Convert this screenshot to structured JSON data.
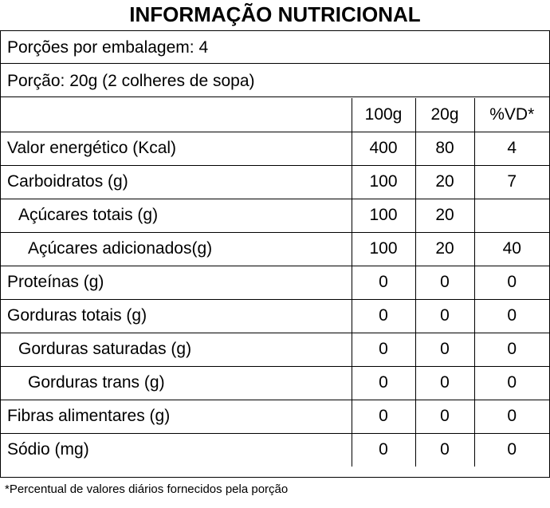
{
  "title": "INFORMAÇÃO NUTRICIONAL",
  "servings_per_package": "Porções por embalagem: 4",
  "serving_size": "Porção: 20g (2 colheres de sopa)",
  "columns": [
    "",
    "100g",
    "20g",
    "%VD*"
  ],
  "rows": [
    {
      "label": "Valor energético (Kcal)",
      "per_100g": "400",
      "per_20g": "80",
      "vd": "4"
    },
    {
      "label": "Carboidratos (g)",
      "per_100g": "100",
      "per_20g": "20",
      "vd": "7"
    },
    {
      "label": "Açúcares totais (g)",
      "per_100g": "100",
      "per_20g": "20",
      "vd": ""
    },
    {
      "label": "Açúcares adicionados(g)",
      "per_100g": "100",
      "per_20g": "20",
      "vd": "40"
    },
    {
      "label": "Proteínas (g)",
      "per_100g": "0",
      "per_20g": "0",
      "vd": "0"
    },
    {
      "label": "Gorduras totais (g)",
      "per_100g": "0",
      "per_20g": "0",
      "vd": "0"
    },
    {
      "label": "Gorduras saturadas (g)",
      "per_100g": "0",
      "per_20g": "0",
      "vd": "0"
    },
    {
      "label": "Gorduras trans (g)",
      "per_100g": "0",
      "per_20g": "0",
      "vd": "0"
    },
    {
      "label": "Fibras alimentares (g)",
      "per_100g": "0",
      "per_20g": "0",
      "vd": "0"
    },
    {
      "label": "Sódio (mg)",
      "per_100g": "0",
      "per_20g": "0",
      "vd": "0"
    }
  ],
  "footnote": "*Percentual de valores diários fornecidos pela porção"
}
